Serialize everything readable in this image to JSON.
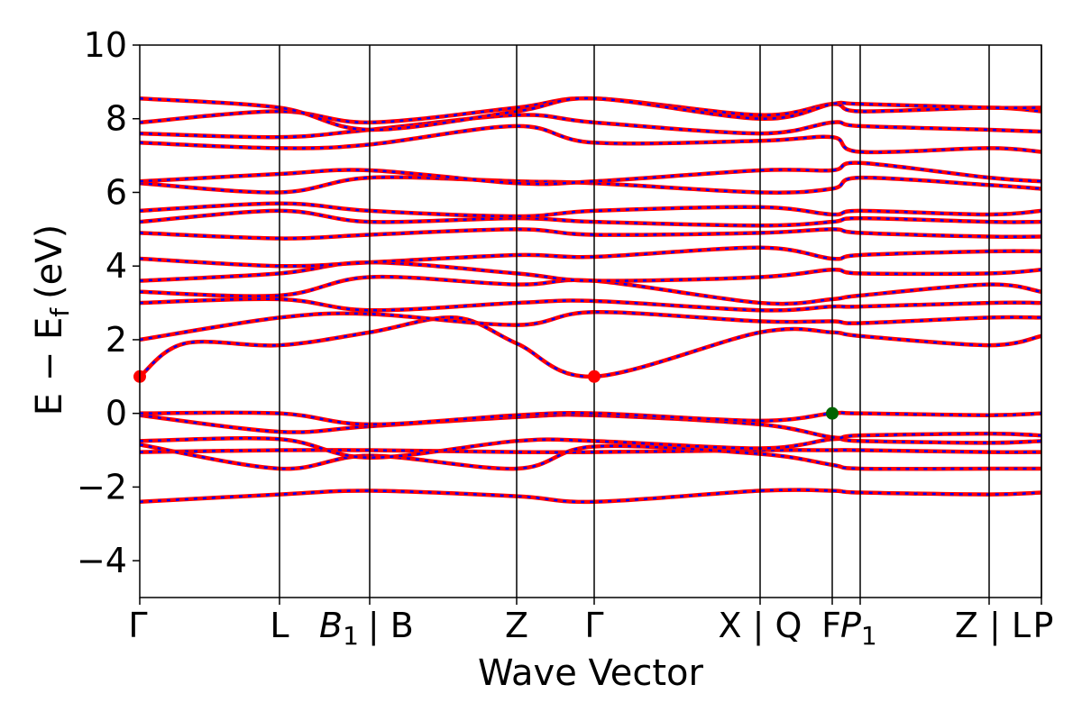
{
  "chart_data": {
    "type": "line",
    "title": "",
    "xlabel": "Wave Vector",
    "ylabel": "E − E",
    "ylabel_sub": "f",
    "ylabel_unit": "(eV)",
    "ylim": [
      -5,
      10
    ],
    "yticks": [
      "10",
      "8",
      "6",
      "4",
      "2",
      "0",
      "−2",
      "−4"
    ],
    "ytick_values": [
      10,
      8,
      6,
      4,
      2,
      0,
      -2,
      -4
    ],
    "xlim": [
      0,
      1
    ],
    "kpoints": [
      {
        "x": 0.0,
        "label": "Γ",
        "italic_sub": null
      },
      {
        "x": 0.155,
        "label": "L",
        "italic_sub": null
      },
      {
        "x": 0.255,
        "label": "| B",
        "italic_base": "B",
        "sub": "1"
      },
      {
        "x": 0.418,
        "label": "Z",
        "italic_sub": null
      },
      {
        "x": 0.504,
        "label": "Γ",
        "italic_sub": null
      },
      {
        "x": 0.688,
        "label": "X | Q",
        "italic_sub": null
      },
      {
        "x": 0.768,
        "label": "F",
        "italic_sub": null
      },
      {
        "x": 0.799,
        "label": "",
        "italic_base": "P",
        "sub": "1"
      },
      {
        "x": 0.942,
        "label": "Z | L",
        "italic_sub": null
      },
      {
        "x": 1.0,
        "label": "P",
        "italic_sub": null
      }
    ],
    "vlines_x": [
      0.155,
      0.255,
      0.418,
      0.504,
      0.688,
      0.768,
      0.799,
      0.942,
      1.0
    ],
    "grid": false,
    "legend": "none",
    "colors": {
      "band_solid": "#ff0000",
      "band_dash": "#0000ff",
      "cbm_marker": "#ff0000",
      "vbm_marker": "#006400"
    },
    "markers": [
      {
        "x": 0.0,
        "y": 1.0,
        "kind": "cbm"
      },
      {
        "x": 0.504,
        "y": 1.0,
        "kind": "cbm"
      },
      {
        "x": 0.768,
        "y": 0.0,
        "kind": "vbm"
      }
    ],
    "series": [
      {
        "x": [
          0,
          0.155,
          0.255,
          0.418,
          0.504,
          0.688,
          0.768,
          0.799,
          0.942,
          1.0
        ],
        "y": [
          -2.4,
          -2.2,
          -2.1,
          -2.25,
          -2.4,
          -2.1,
          -2.1,
          -2.15,
          -2.2,
          -2.15
        ]
      },
      {
        "x": [
          0,
          0.155,
          0.255,
          0.418,
          0.504,
          0.688,
          0.768,
          0.799,
          0.942,
          1.0
        ],
        "y": [
          -1.05,
          -1.0,
          -1.0,
          -1.05,
          -1.05,
          -1.0,
          -1.0,
          -1.0,
          -1.05,
          -1.05
        ]
      },
      {
        "x": [
          0,
          0.155,
          0.255,
          0.418,
          0.504,
          0.688,
          0.768,
          0.799,
          0.942,
          1.0
        ],
        "y": [
          -0.85,
          -1.5,
          -1.15,
          -1.5,
          -0.9,
          -1.1,
          -1.4,
          -1.5,
          -1.5,
          -1.5
        ]
      },
      {
        "x": [
          0,
          0.155,
          0.255,
          0.418,
          0.504,
          0.688,
          0.768,
          0.799,
          0.942,
          1.0
        ],
        "y": [
          -0.75,
          -0.7,
          -1.2,
          -0.75,
          -0.75,
          -0.95,
          -0.7,
          -0.75,
          -0.8,
          -0.75
        ]
      },
      {
        "x": [
          0,
          0.155,
          0.255,
          0.418,
          0.504,
          0.688,
          0.768,
          0.799,
          0.942,
          1.0
        ],
        "y": [
          -0.05,
          -0.5,
          -0.35,
          -0.1,
          -0.05,
          -0.3,
          -0.65,
          -0.6,
          -0.55,
          -0.6
        ]
      },
      {
        "x": [
          0,
          0.155,
          0.255,
          0.418,
          0.504,
          0.688,
          0.768,
          0.799,
          0.942,
          1.0
        ],
        "y": [
          0.0,
          0.0,
          -0.3,
          -0.05,
          0.0,
          -0.2,
          0.0,
          0.0,
          -0.05,
          0.0
        ]
      },
      {
        "x": [
          0,
          0.05,
          0.155,
          0.255,
          0.35,
          0.418,
          0.504,
          0.688,
          0.768,
          0.799,
          0.942,
          1.0
        ],
        "y": [
          1.0,
          1.9,
          1.85,
          2.2,
          2.6,
          1.9,
          1.0,
          2.2,
          2.2,
          2.1,
          1.85,
          2.1
        ]
      },
      {
        "x": [
          0,
          0.155,
          0.255,
          0.418,
          0.504,
          0.688,
          0.768,
          0.799,
          0.942,
          1.0
        ],
        "y": [
          2.0,
          2.6,
          2.7,
          2.4,
          2.75,
          2.5,
          2.5,
          2.45,
          2.6,
          2.6
        ]
      },
      {
        "x": [
          0,
          0.155,
          0.255,
          0.418,
          0.504,
          0.688,
          0.768,
          0.799,
          0.942,
          1.0
        ],
        "y": [
          3.0,
          3.1,
          2.8,
          3.0,
          3.05,
          2.8,
          2.9,
          2.9,
          3.0,
          3.0
        ]
      },
      {
        "x": [
          0,
          0.155,
          0.255,
          0.418,
          0.504,
          0.688,
          0.768,
          0.799,
          0.942,
          1.0
        ],
        "y": [
          3.3,
          3.2,
          3.7,
          3.5,
          3.6,
          3.0,
          3.1,
          3.2,
          3.5,
          3.3
        ]
      },
      {
        "x": [
          0,
          0.155,
          0.255,
          0.418,
          0.504,
          0.688,
          0.768,
          0.799,
          0.942,
          1.0
        ],
        "y": [
          3.6,
          3.8,
          4.1,
          3.8,
          3.6,
          3.7,
          3.9,
          3.8,
          3.8,
          3.9
        ]
      },
      {
        "x": [
          0,
          0.155,
          0.255,
          0.418,
          0.504,
          0.688,
          0.768,
          0.799,
          0.942,
          1.0
        ],
        "y": [
          4.2,
          4.0,
          4.1,
          4.3,
          4.25,
          4.5,
          4.2,
          4.3,
          4.4,
          4.4
        ]
      },
      {
        "x": [
          0,
          0.155,
          0.255,
          0.418,
          0.504,
          0.688,
          0.768,
          0.799,
          0.942,
          1.0
        ],
        "y": [
          4.9,
          4.75,
          4.85,
          5.0,
          4.85,
          4.9,
          5.0,
          4.9,
          4.8,
          4.8
        ]
      },
      {
        "x": [
          0,
          0.155,
          0.255,
          0.418,
          0.504,
          0.688,
          0.768,
          0.799,
          0.942,
          1.0
        ],
        "y": [
          5.2,
          5.5,
          5.2,
          5.3,
          5.2,
          5.1,
          5.2,
          5.3,
          5.2,
          5.2
        ]
      },
      {
        "x": [
          0,
          0.155,
          0.255,
          0.418,
          0.504,
          0.688,
          0.768,
          0.799,
          0.942,
          1.0
        ],
        "y": [
          5.5,
          5.7,
          5.5,
          5.35,
          5.5,
          5.6,
          5.4,
          5.5,
          5.4,
          5.5
        ]
      },
      {
        "x": [
          0,
          0.155,
          0.255,
          0.418,
          0.504,
          0.688,
          0.768,
          0.799,
          0.942,
          1.0
        ],
        "y": [
          6.25,
          6.0,
          6.4,
          6.3,
          6.25,
          6.0,
          6.1,
          6.4,
          6.2,
          6.1
        ]
      },
      {
        "x": [
          0,
          0.155,
          0.255,
          0.418,
          0.504,
          0.688,
          0.768,
          0.799,
          0.942,
          1.0
        ],
        "y": [
          6.3,
          6.5,
          6.6,
          6.25,
          6.3,
          6.6,
          6.6,
          6.8,
          6.4,
          6.3
        ]
      },
      {
        "x": [
          0,
          0.155,
          0.255,
          0.418,
          0.504,
          0.688,
          0.768,
          0.799,
          0.942,
          1.0
        ],
        "y": [
          7.35,
          7.2,
          7.3,
          7.8,
          7.35,
          7.4,
          7.5,
          7.1,
          7.2,
          7.1
        ]
      },
      {
        "x": [
          0,
          0.155,
          0.255,
          0.418,
          0.504,
          0.688,
          0.768,
          0.799,
          0.942,
          1.0
        ],
        "y": [
          7.6,
          7.5,
          7.7,
          8.1,
          7.9,
          7.6,
          7.9,
          7.8,
          7.7,
          7.65
        ]
      },
      {
        "x": [
          0,
          0.155,
          0.255,
          0.418,
          0.504,
          0.688,
          0.768,
          0.799,
          0.942,
          1.0
        ],
        "y": [
          7.9,
          8.2,
          7.9,
          8.3,
          8.55,
          8.1,
          8.4,
          8.2,
          8.3,
          8.2
        ]
      },
      {
        "x": [
          0,
          0.155,
          0.255,
          0.418,
          0.504,
          0.688,
          0.768,
          0.799,
          0.942,
          1.0
        ],
        "y": [
          8.55,
          8.3,
          7.7,
          8.2,
          8.55,
          8.0,
          8.4,
          8.4,
          8.3,
          8.3
        ]
      }
    ]
  }
}
